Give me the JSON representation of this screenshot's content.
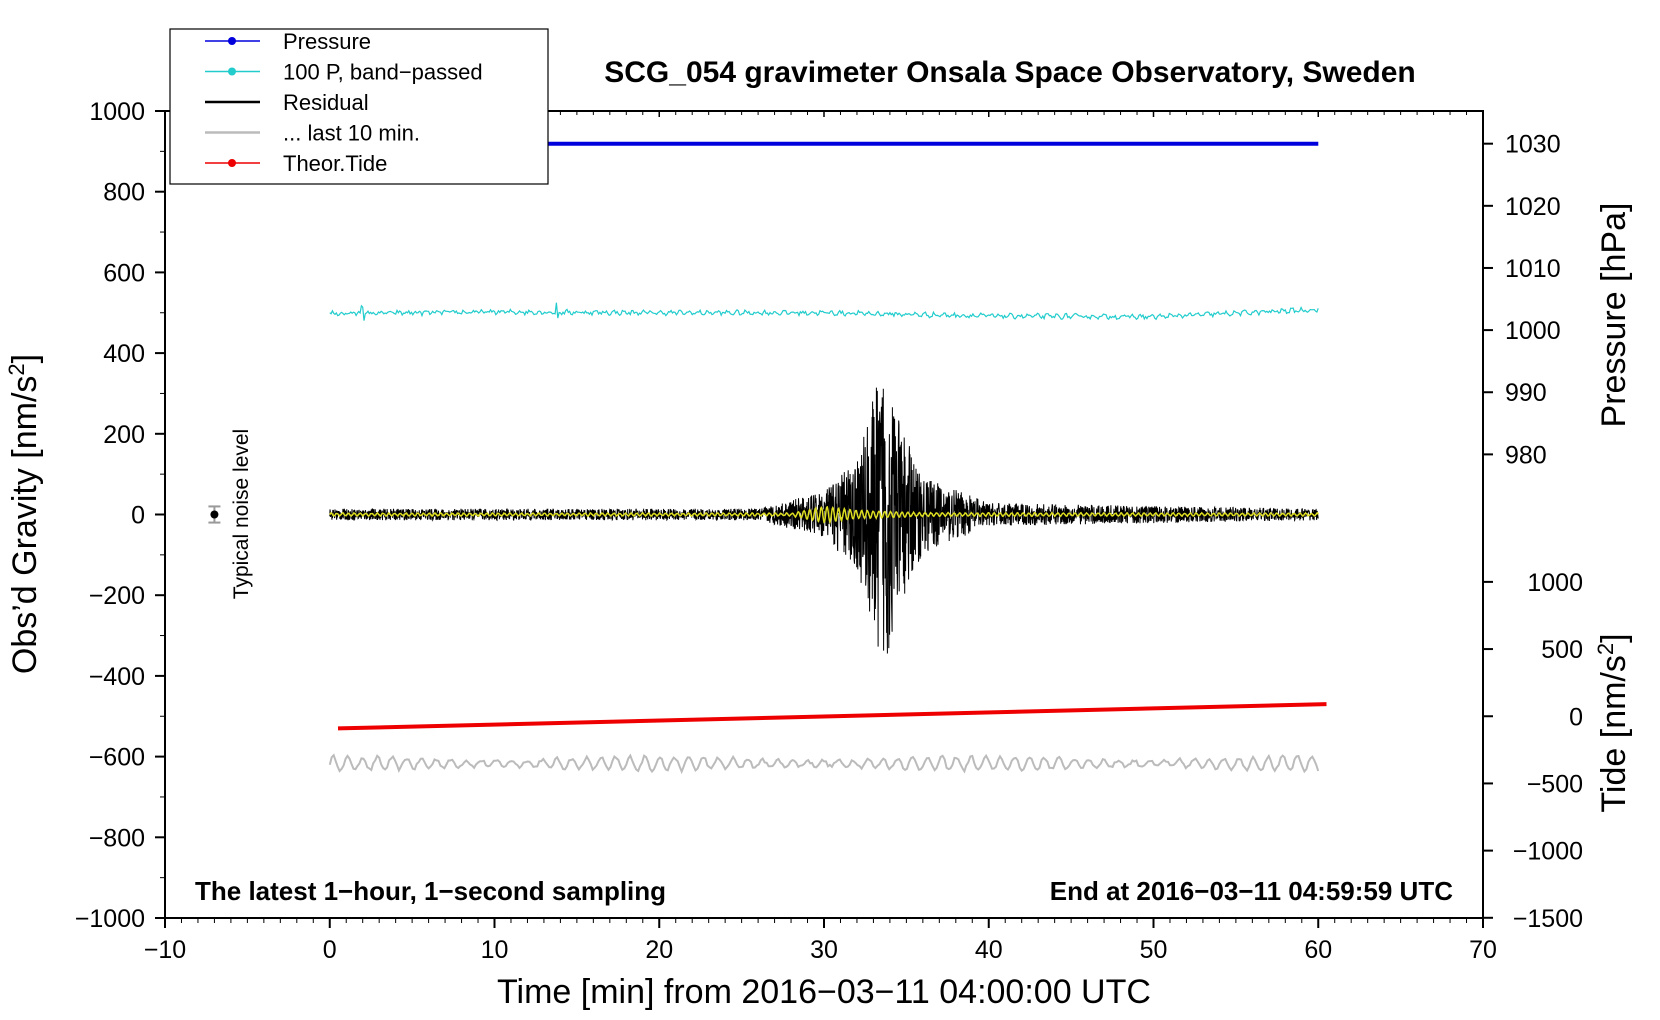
{
  "chart_data": {
    "type": "line",
    "title": "SCG_054 gravimeter Onsala Space Observatory, Sweden",
    "xlabel": "Time [min] from 2016−03−11 04:00:00 UTC",
    "ylabel": "Obs’d Gravity [nm/s²]",
    "ylabel_main": "Obs’d Gravity [nm/s",
    "ylabel_sup": "2",
    "ylabel_end": "]",
    "xlim": [
      -10,
      70
    ],
    "ylim": [
      -1000,
      1000
    ],
    "xticks": [
      -10,
      0,
      10,
      20,
      30,
      40,
      50,
      60,
      70
    ],
    "xtick_labels": [
      "−10",
      "0",
      "10",
      "20",
      "30",
      "40",
      "50",
      "60",
      "70"
    ],
    "yticks": [
      1000,
      800,
      600,
      400,
      200,
      0,
      -200,
      -400,
      -600,
      -800,
      -1000
    ],
    "ytick_labels": [
      "1000",
      "800",
      "600",
      "400",
      "200",
      "0",
      "−200",
      "−400",
      "−600",
      "−800",
      "−1000"
    ],
    "right_pressure": {
      "label": "Pressure [hPa]",
      "ticks": [
        1030,
        1020,
        1010,
        1000,
        990,
        980
      ],
      "tick_labels": [
        "1030",
        "1020",
        "1010",
        "1000",
        "990",
        "980"
      ],
      "gravity_at_1000hPa": 457,
      "gravity_per_hPa": 15.4
    },
    "right_tide": {
      "label": "Tide [nm/s²]",
      "label_main": "Tide [nm/s",
      "label_sup": "2",
      "label_end": "]",
      "ticks": [
        1000,
        500,
        0,
        -500,
        -1000,
        -1500
      ],
      "tick_labels": [
        "1000",
        "500",
        "0",
        "−500",
        "−1000",
        "−1500"
      ],
      "gravity_at_0": -500,
      "gravity_per_unit": 0.333
    },
    "notes": {
      "left": "The latest 1−hour, 1−second sampling",
      "right": "End at 2016−03−11 04:59:59 UTC",
      "noise": "Typical noise level"
    },
    "noise_marker": {
      "x": -7,
      "y": 0,
      "err": 20
    },
    "legend": [
      {
        "label": "Pressure",
        "color": "#0000dd",
        "marker": true
      },
      {
        "label": "100 P, band−passed",
        "color": "#22cccc",
        "marker": true
      },
      {
        "label": "Residual",
        "color": "#000000",
        "marker": false
      },
      {
        "label": "... last 10 min.",
        "color": "#bbbbbb",
        "marker": false
      },
      {
        "label": "Theor.Tide",
        "color": "#ee0000",
        "marker": true
      }
    ],
    "series": [
      {
        "name": "Pressure",
        "color": "#0000dd",
        "x": [
          0,
          60
        ],
        "values": [
          919,
          919
        ]
      },
      {
        "name": "100 P, band−passed",
        "color": "#22cccc",
        "x": [
          0,
          10,
          20,
          30,
          40,
          50,
          60
        ],
        "values": [
          498,
          502,
          500,
          500,
          492,
          490,
          508
        ]
      },
      {
        "name": "Residual",
        "color": "#000000",
        "x": [
          0,
          26,
          30,
          32,
          33.5,
          34,
          34.5,
          36,
          40,
          60
        ],
        "values": [
          15,
          15,
          60,
          150,
          380,
          380,
          250,
          100,
          30,
          15
        ]
      },
      {
        "name": "Residual (filtered)",
        "color": "#dddd22",
        "x": [
          0,
          28,
          30,
          32,
          36,
          60
        ],
        "values": [
          3,
          3,
          20,
          10,
          4,
          3
        ]
      },
      {
        "name": "... last 10 min.",
        "color": "#bbbbbb",
        "x": [
          0,
          60
        ],
        "values": [
          -617,
          -617
        ]
      },
      {
        "name": "Theor.Tide",
        "color": "#ee0000",
        "x": [
          0.5,
          60.5
        ],
        "values": [
          -530,
          -470
        ]
      }
    ]
  }
}
